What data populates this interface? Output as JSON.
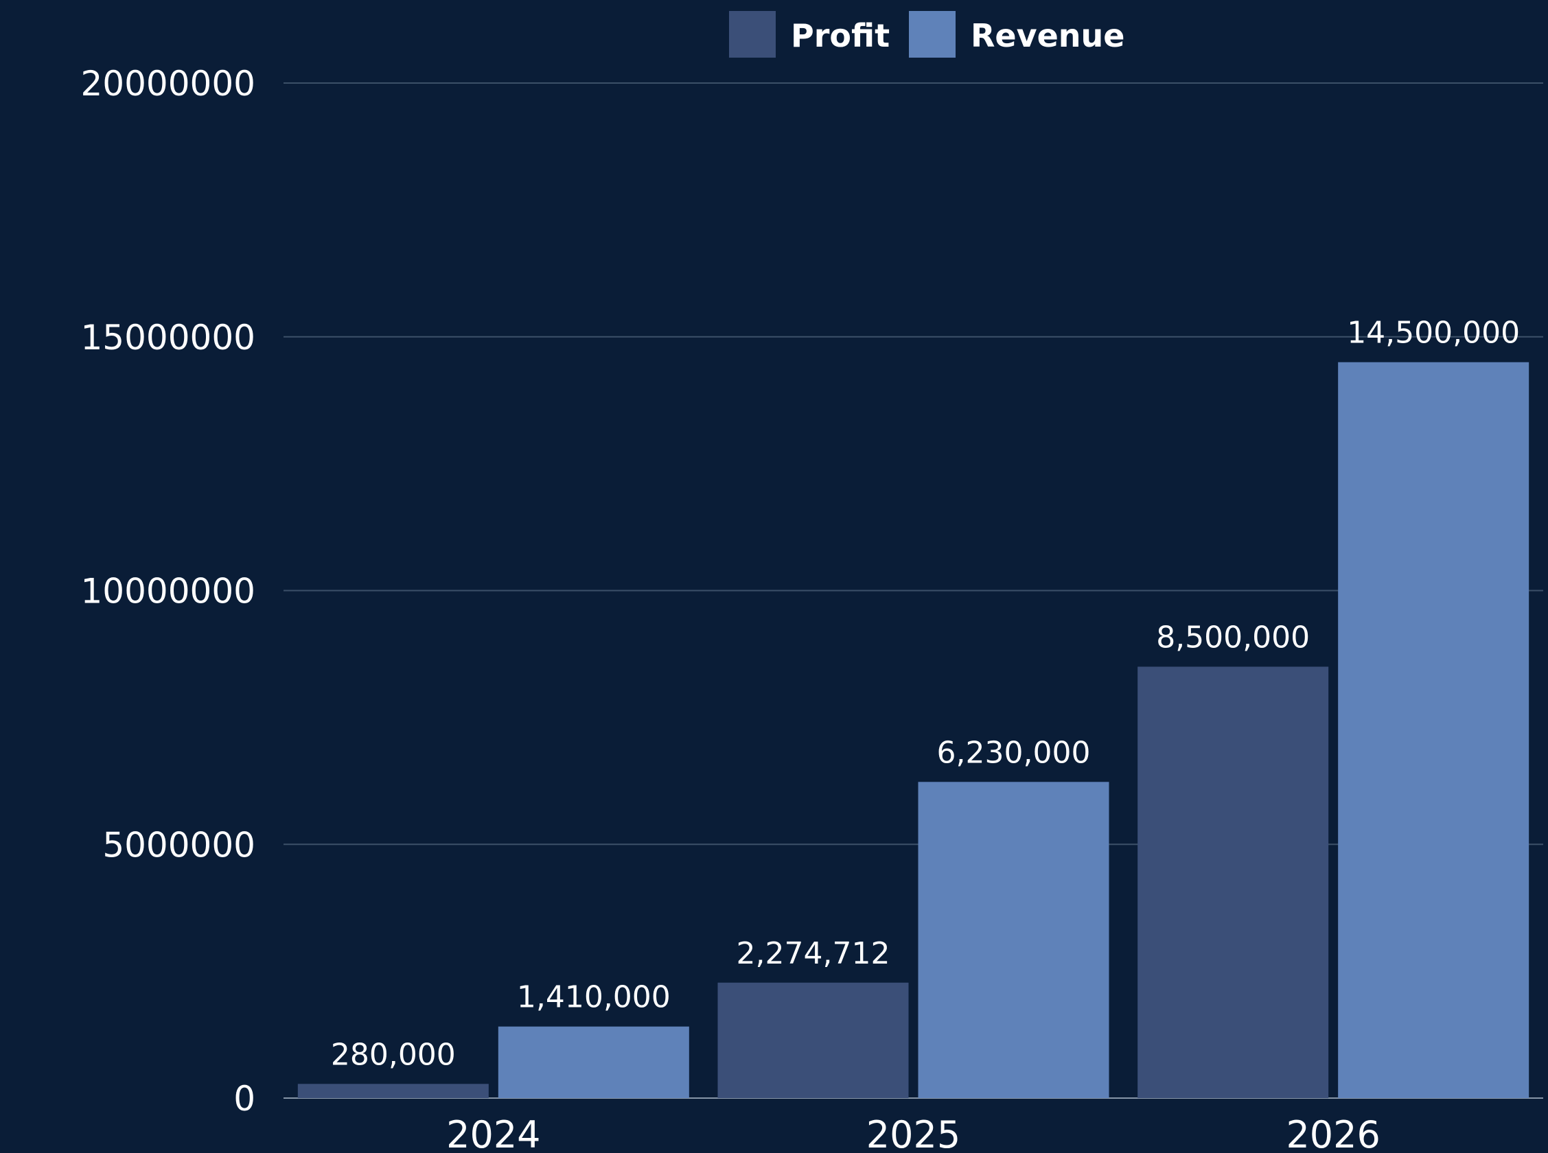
{
  "chart_data": {
    "type": "bar",
    "categories": [
      "2024",
      "2025",
      "2026"
    ],
    "series": [
      {
        "name": "Profit",
        "values": [
          280000,
          2274712,
          8500000
        ],
        "labels": [
          "280,000",
          "2,274,712",
          "8,500,000"
        ],
        "color": "#3b4f78"
      },
      {
        "name": "Revenue",
        "values": [
          1410000,
          6230000,
          14500000
        ],
        "labels": [
          "1,410,000",
          "6,230,000",
          "14,500,000"
        ],
        "color": "#5f82b9"
      }
    ],
    "ylim": [
      0,
      20000000
    ],
    "yticks": [
      "0",
      "5000000",
      "10000000",
      "15000000",
      "20000000"
    ],
    "grid": true,
    "legend_position": "top-center",
    "title": "",
    "xlabel": "",
    "ylabel": ""
  },
  "colors": {
    "background": "#0a1d37",
    "grid": "#3c5068",
    "text": "#ffffff"
  }
}
